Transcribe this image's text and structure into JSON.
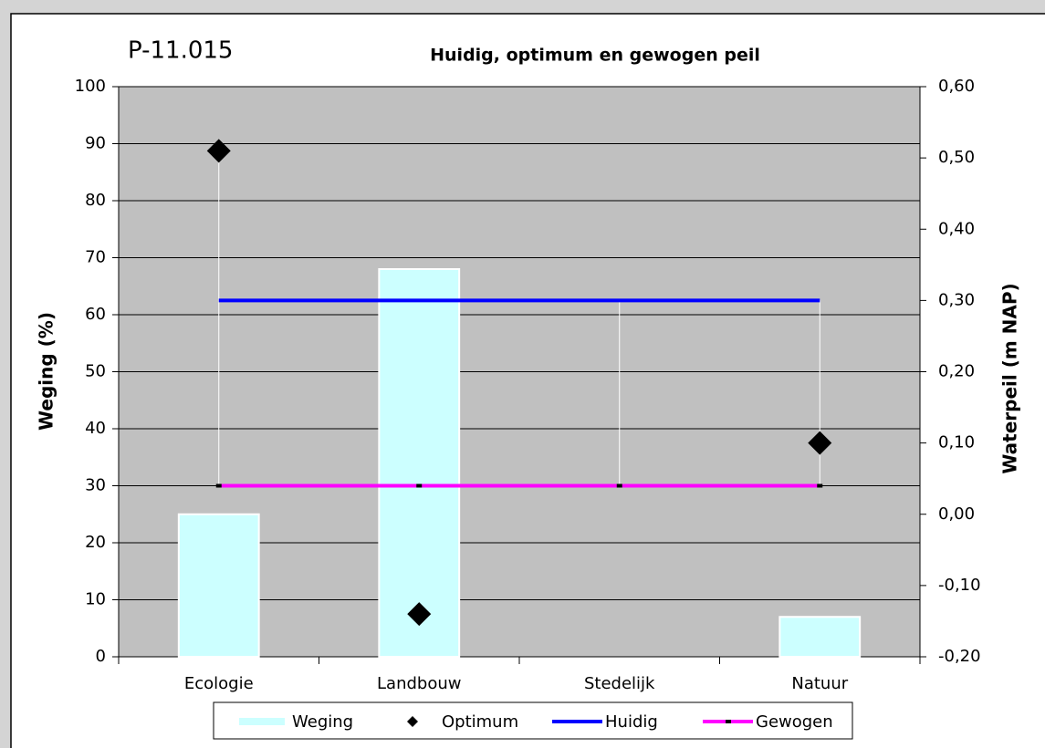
{
  "chart_data": {
    "type": "bar",
    "label": "P-11.015",
    "title": "Huidig, optimum en gewogen peil",
    "y_label": "Weging (%)",
    "y2_label": "Waterpeil (m NAP)",
    "categories": [
      "Ecologie",
      "Landbouw",
      "Stedelijk",
      "Natuur"
    ],
    "series": [
      {
        "name": "Weging",
        "type": "bar",
        "color": "#ccffff",
        "values": [
          25,
          68,
          0,
          7
        ]
      },
      {
        "name": "Optimum",
        "type": "scatter",
        "color": "#000000",
        "axis": "y2",
        "values": [
          0.51,
          -0.14,
          null,
          0.1
        ]
      },
      {
        "name": "Huidig",
        "type": "line",
        "color": "#0000ff",
        "axis": "y2",
        "values": [
          0.3,
          0.3,
          0.3,
          0.3
        ]
      },
      {
        "name": "Gewogen",
        "type": "line",
        "color": "#ff00ff",
        "axis": "y2",
        "values": [
          0.04,
          0.04,
          0.04,
          0.04
        ]
      }
    ],
    "ylim": [
      0,
      100
    ],
    "yticks": [
      0,
      10,
      20,
      30,
      40,
      50,
      60,
      70,
      80,
      90,
      100
    ],
    "y2lim": [
      -0.2,
      0.6
    ],
    "y2ticks": [
      {
        "value": -0.2,
        "label": "-0,20"
      },
      {
        "value": -0.1,
        "label": "-0,10"
      },
      {
        "value": 0,
        "label": "0,00"
      },
      {
        "value": 0.1,
        "label": "0,10"
      },
      {
        "value": 0.2,
        "label": "0,20"
      },
      {
        "value": 0.3,
        "label": "0,30"
      },
      {
        "value": 0.4,
        "label": "0,40"
      },
      {
        "value": 0.5,
        "label": "0,50"
      },
      {
        "value": 0.6,
        "label": "0,60"
      }
    ],
    "grid": true,
    "legend": "bottom"
  }
}
